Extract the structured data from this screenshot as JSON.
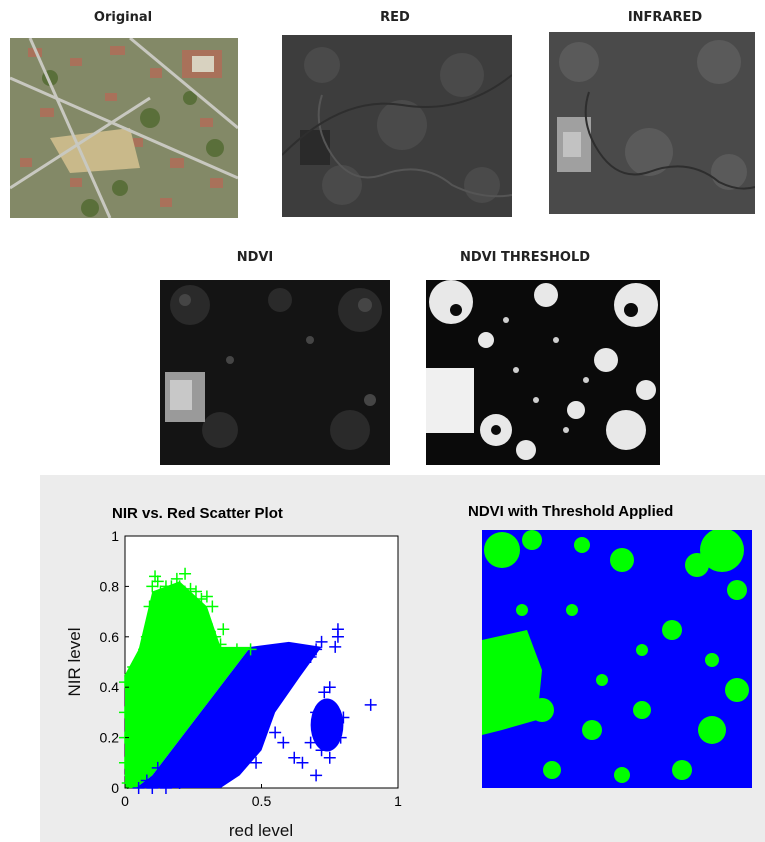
{
  "images": {
    "original": {
      "caption": "Original"
    },
    "red": {
      "caption": "RED"
    },
    "infrared": {
      "caption": "INFRARED"
    },
    "ndvi": {
      "caption": "NDVI"
    },
    "ndvi_threshold": {
      "caption": "NDVI THRESHOLD"
    }
  },
  "threshold_map": {
    "title": "NDVI with Threshold Applied",
    "colors": {
      "vegetation": "#00ff00",
      "non_vegetation": "#0000ff"
    }
  },
  "colors": {
    "vegetation": "#00ff00",
    "non_vegetation": "#0000ff",
    "panel_bg": "#ececec"
  },
  "chart_data": {
    "type": "scatter",
    "title": "NIR vs. Red Scatter Plot",
    "xlabel": "red level",
    "ylabel": "NIR level",
    "xlim": [
      0,
      1
    ],
    "ylim": [
      0,
      1
    ],
    "xticks": [
      "0",
      "0.5",
      "1"
    ],
    "yticks": [
      "0",
      "0.2",
      "0.4",
      "0.6",
      "0.8",
      "1"
    ],
    "marker": "+",
    "series": [
      {
        "color": "#00ff00",
        "points": [
          [
            0.0,
            0.42
          ],
          [
            0.0,
            0.3
          ],
          [
            0.0,
            0.2
          ],
          [
            0.0,
            0.1
          ],
          [
            0.02,
            0.45
          ],
          [
            0.03,
            0.48
          ],
          [
            0.05,
            0.5
          ],
          [
            0.07,
            0.55
          ],
          [
            0.08,
            0.6
          ],
          [
            0.09,
            0.72
          ],
          [
            0.1,
            0.8
          ],
          [
            0.11,
            0.84
          ],
          [
            0.12,
            0.82
          ],
          [
            0.13,
            0.78
          ],
          [
            0.15,
            0.8
          ],
          [
            0.17,
            0.8
          ],
          [
            0.19,
            0.83
          ],
          [
            0.2,
            0.8
          ],
          [
            0.22,
            0.85
          ],
          [
            0.24,
            0.79
          ],
          [
            0.26,
            0.78
          ],
          [
            0.28,
            0.75
          ],
          [
            0.3,
            0.76
          ],
          [
            0.32,
            0.72
          ],
          [
            0.33,
            0.6
          ],
          [
            0.35,
            0.57
          ],
          [
            0.41,
            0.55
          ],
          [
            0.46,
            0.55
          ],
          [
            0.03,
            0.25
          ],
          [
            0.05,
            0.3
          ],
          [
            0.1,
            0.4
          ],
          [
            0.15,
            0.45
          ],
          [
            0.2,
            0.5
          ],
          [
            0.25,
            0.55
          ],
          [
            0.04,
            0.15
          ],
          [
            0.06,
            0.2
          ],
          [
            0.02,
            0.05
          ],
          [
            0.01,
            0.02
          ],
          [
            0.18,
            0.62
          ],
          [
            0.22,
            0.68
          ],
          [
            0.14,
            0.7
          ],
          [
            0.3,
            0.65
          ],
          [
            0.36,
            0.63
          ]
        ]
      },
      {
        "color": "#0000ff",
        "points": [
          [
            0.05,
            0.0
          ],
          [
            0.08,
            0.03
          ],
          [
            0.12,
            0.08
          ],
          [
            0.18,
            0.12
          ],
          [
            0.25,
            0.16
          ],
          [
            0.3,
            0.2
          ],
          [
            0.35,
            0.24
          ],
          [
            0.4,
            0.3
          ],
          [
            0.45,
            0.34
          ],
          [
            0.5,
            0.4
          ],
          [
            0.55,
            0.43
          ],
          [
            0.6,
            0.47
          ],
          [
            0.65,
            0.5
          ],
          [
            0.7,
            0.55
          ],
          [
            0.72,
            0.58
          ],
          [
            0.78,
            0.6
          ],
          [
            0.78,
            0.63
          ],
          [
            0.77,
            0.56
          ],
          [
            0.68,
            0.52
          ],
          [
            0.73,
            0.38
          ],
          [
            0.75,
            0.4
          ],
          [
            0.7,
            0.3
          ],
          [
            0.72,
            0.25
          ],
          [
            0.76,
            0.22
          ],
          [
            0.79,
            0.2
          ],
          [
            0.8,
            0.28
          ],
          [
            0.68,
            0.18
          ],
          [
            0.72,
            0.15
          ],
          [
            0.75,
            0.12
          ],
          [
            0.65,
            0.1
          ],
          [
            0.7,
            0.05
          ],
          [
            0.9,
            0.33
          ],
          [
            0.58,
            0.18
          ],
          [
            0.55,
            0.22
          ],
          [
            0.62,
            0.12
          ],
          [
            0.48,
            0.1
          ],
          [
            0.42,
            0.2
          ],
          [
            0.38,
            0.05
          ],
          [
            0.3,
            0.05
          ],
          [
            0.2,
            0.02
          ],
          [
            0.15,
            0.0
          ],
          [
            0.1,
            0.0
          ]
        ]
      }
    ]
  }
}
